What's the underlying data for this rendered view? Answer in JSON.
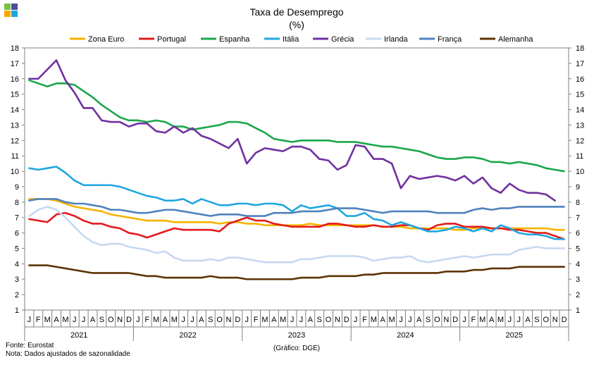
{
  "logo": {
    "colors": [
      "#7ac143",
      "#4d4f9e",
      "#f7a800",
      "#1ea6e0"
    ]
  },
  "chart_data": {
    "type": "line",
    "title": "Taxa de Desemprego",
    "subtitle": "(%)",
    "xlabel": "",
    "ylabel": "",
    "ylim": [
      1,
      18
    ],
    "yticks": [
      1,
      2,
      3,
      4,
      5,
      6,
      7,
      8,
      9,
      10,
      11,
      12,
      13,
      14,
      15,
      16,
      17,
      18
    ],
    "grid": false,
    "legend_position": "top",
    "months": [
      "J",
      "F",
      "M",
      "A",
      "M",
      "J",
      "J",
      "A",
      "S",
      "O",
      "N",
      "D"
    ],
    "years": [
      "2021",
      "2022",
      "2023",
      "2024",
      "2025"
    ],
    "series": [
      {
        "name": "Zona Euro",
        "color": "#f5b400",
        "values": [
          8.2,
          8.2,
          8.2,
          8.1,
          7.9,
          7.7,
          7.6,
          7.5,
          7.4,
          7.2,
          7.1,
          7.0,
          6.9,
          6.8,
          6.8,
          6.8,
          6.7,
          6.7,
          6.7,
          6.7,
          6.7,
          6.6,
          6.7,
          6.7,
          6.6,
          6.6,
          6.5,
          6.5,
          6.5,
          6.5,
          6.5,
          6.6,
          6.5,
          6.5,
          6.5,
          6.5,
          6.5,
          6.5,
          6.5,
          6.4,
          6.4,
          6.4,
          6.3,
          6.3,
          6.3,
          6.3,
          6.3,
          6.2,
          6.2,
          6.3,
          6.3,
          6.3,
          6.3,
          6.3,
          6.3,
          6.3,
          6.3,
          6.3,
          6.2,
          6.2
        ]
      },
      {
        "name": "Portugal",
        "color": "#e31a1c",
        "values": [
          6.9,
          6.8,
          6.7,
          7.2,
          7.3,
          7.1,
          6.8,
          6.6,
          6.6,
          6.4,
          6.3,
          6.0,
          5.9,
          5.7,
          5.9,
          6.1,
          6.3,
          6.2,
          6.2,
          6.2,
          6.2,
          6.1,
          6.6,
          6.8,
          7.0,
          6.8,
          6.8,
          6.6,
          6.5,
          6.4,
          6.4,
          6.4,
          6.4,
          6.6,
          6.6,
          6.5,
          6.4,
          6.4,
          6.5,
          6.4,
          6.4,
          6.5,
          6.5,
          6.3,
          6.2,
          6.5,
          6.6,
          6.6,
          6.4,
          6.4,
          6.4,
          6.3,
          6.3,
          6.2,
          6.2,
          6.1,
          6.0,
          6.0,
          5.8,
          5.6
        ]
      },
      {
        "name": "Espanha",
        "color": "#1aa64a",
        "values": [
          15.9,
          15.7,
          15.5,
          15.7,
          15.7,
          15.6,
          15.2,
          14.8,
          14.3,
          13.9,
          13.5,
          13.3,
          13.3,
          13.2,
          13.3,
          13.2,
          12.9,
          12.9,
          12.7,
          12.8,
          12.9,
          13.0,
          13.2,
          13.2,
          13.1,
          12.8,
          12.5,
          12.1,
          12.0,
          11.9,
          12.0,
          12.0,
          12.0,
          12.0,
          11.9,
          11.9,
          11.9,
          11.8,
          11.7,
          11.6,
          11.6,
          11.5,
          11.4,
          11.3,
          11.1,
          10.9,
          10.8,
          10.8,
          10.9,
          10.9,
          10.8,
          10.6,
          10.6,
          10.5,
          10.6,
          10.5,
          10.4,
          10.2,
          10.1,
          10.0
        ]
      },
      {
        "name": "Itália",
        "color": "#1ea6e0",
        "values": [
          10.2,
          10.1,
          10.2,
          10.3,
          9.9,
          9.4,
          9.1,
          9.1,
          9.1,
          9.1,
          9.0,
          8.8,
          8.6,
          8.4,
          8.3,
          8.1,
          8.1,
          8.2,
          7.9,
          8.2,
          8.0,
          7.8,
          7.8,
          7.9,
          7.9,
          7.8,
          7.9,
          7.9,
          7.8,
          7.4,
          7.8,
          7.6,
          7.7,
          7.8,
          7.6,
          7.1,
          7.1,
          7.3,
          6.9,
          6.8,
          6.5,
          6.7,
          6.5,
          6.3,
          6.1,
          6.1,
          6.2,
          6.4,
          6.3,
          6.1,
          6.3,
          6.1,
          6.5,
          6.3,
          6.0,
          5.9,
          5.9,
          5.8,
          5.6,
          5.6
        ]
      },
      {
        "name": "Grécia",
        "color": "#7030a0",
        "values": [
          16.0,
          16.0,
          16.6,
          17.2,
          15.9,
          15.1,
          14.1,
          14.1,
          13.3,
          13.2,
          13.2,
          12.9,
          13.1,
          13.1,
          12.6,
          12.5,
          12.9,
          12.5,
          12.8,
          12.3,
          12.1,
          11.8,
          11.5,
          12.1,
          10.5,
          11.2,
          11.5,
          11.4,
          11.3,
          11.6,
          11.6,
          11.4,
          10.8,
          10.7,
          10.1,
          10.4,
          11.7,
          11.6,
          10.8,
          10.8,
          10.5,
          8.9,
          9.7,
          9.5,
          9.6,
          9.7,
          9.6,
          9.4,
          9.7,
          9.2,
          9.6,
          8.9,
          8.6,
          9.2,
          8.8,
          8.6,
          8.6,
          8.5,
          8.1,
          null
        ]
      },
      {
        "name": "Irlanda",
        "color": "#c6d9f0",
        "values": [
          7.1,
          7.5,
          7.7,
          7.5,
          7.0,
          6.4,
          5.8,
          5.4,
          5.2,
          5.3,
          5.3,
          5.1,
          5.0,
          4.9,
          4.7,
          4.8,
          4.4,
          4.2,
          4.2,
          4.2,
          4.3,
          4.2,
          4.4,
          4.4,
          4.3,
          4.2,
          4.1,
          4.1,
          4.1,
          4.1,
          4.3,
          4.3,
          4.4,
          4.5,
          4.5,
          4.5,
          4.5,
          4.4,
          4.2,
          4.3,
          4.4,
          4.4,
          4.5,
          4.2,
          4.1,
          4.2,
          4.3,
          4.4,
          4.5,
          4.4,
          4.5,
          4.6,
          4.6,
          4.6,
          4.9,
          5.0,
          5.1,
          5.0,
          5.0,
          5.0
        ]
      },
      {
        "name": "França",
        "color": "#4f81bd",
        "values": [
          8.1,
          8.2,
          8.2,
          8.2,
          8.0,
          7.9,
          7.9,
          7.8,
          7.7,
          7.5,
          7.5,
          7.4,
          7.3,
          7.3,
          7.4,
          7.5,
          7.5,
          7.4,
          7.3,
          7.2,
          7.1,
          7.2,
          7.2,
          7.2,
          7.1,
          7.1,
          7.1,
          7.3,
          7.3,
          7.3,
          7.4,
          7.4,
          7.4,
          7.5,
          7.6,
          7.6,
          7.6,
          7.5,
          7.4,
          7.3,
          7.4,
          7.4,
          7.4,
          7.4,
          7.4,
          7.3,
          7.3,
          7.3,
          7.3,
          7.5,
          7.6,
          7.5,
          7.6,
          7.6,
          7.7,
          7.7,
          7.7,
          7.7,
          7.7,
          7.7
        ]
      },
      {
        "name": "Alemanha",
        "color": "#5c3306",
        "values": [
          3.9,
          3.9,
          3.9,
          3.8,
          3.7,
          3.6,
          3.5,
          3.4,
          3.4,
          3.4,
          3.4,
          3.4,
          3.3,
          3.2,
          3.2,
          3.1,
          3.1,
          3.1,
          3.1,
          3.1,
          3.2,
          3.1,
          3.1,
          3.1,
          3.0,
          3.0,
          3.0,
          3.0,
          3.0,
          3.0,
          3.1,
          3.1,
          3.1,
          3.2,
          3.2,
          3.2,
          3.2,
          3.3,
          3.3,
          3.4,
          3.4,
          3.4,
          3.4,
          3.4,
          3.4,
          3.4,
          3.5,
          3.5,
          3.5,
          3.6,
          3.6,
          3.7,
          3.7,
          3.7,
          3.8,
          3.8,
          3.8,
          3.8,
          3.8,
          3.8
        ]
      }
    ]
  },
  "footer": {
    "source": "Fonte: Eurostat",
    "note": "Nota: Dados ajustados de sazonalidade",
    "credit": "(Gráfico: DGE)"
  }
}
